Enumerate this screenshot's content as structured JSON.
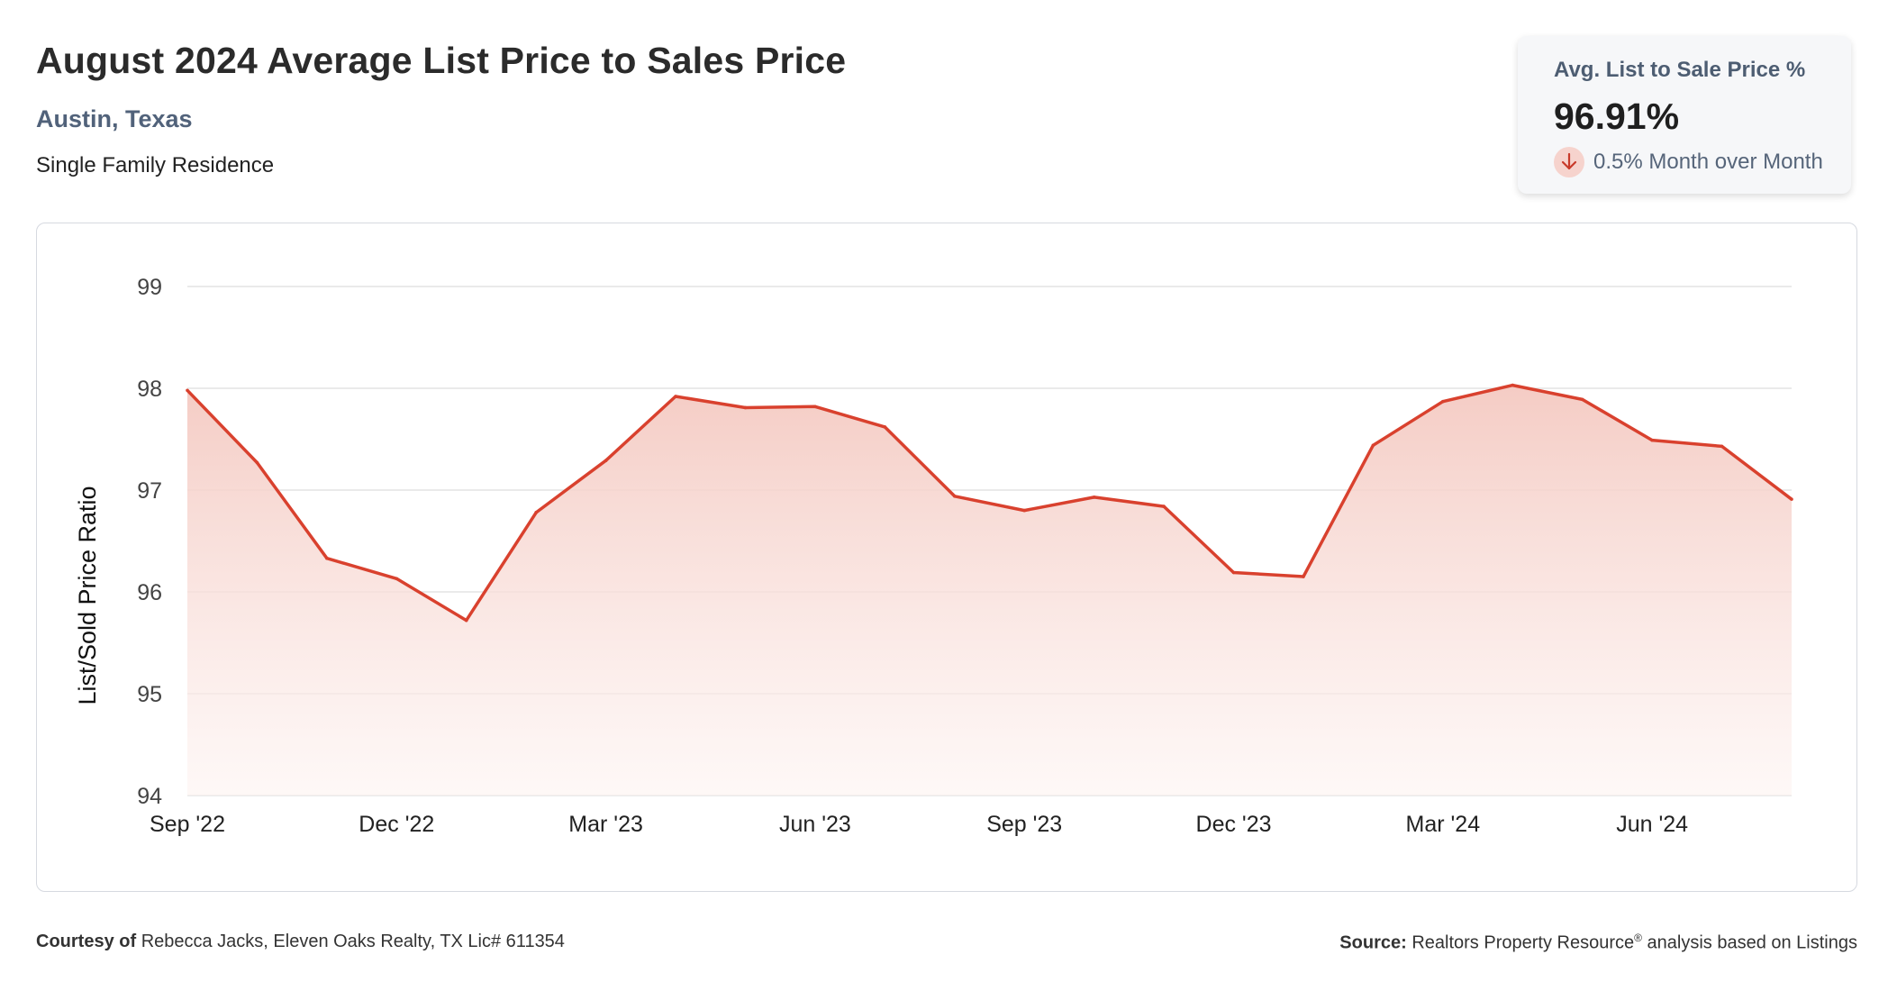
{
  "header": {
    "title": "August 2024 Average List Price to Sales Price",
    "subtitle": "Austin, Texas",
    "property_type": "Single Family Residence"
  },
  "kpi": {
    "label": "Avg. List to Sale Price %",
    "value": "96.91%",
    "change_text": "0.5% Month over Month",
    "direction": "down",
    "arrow_icon": "arrow-down-icon"
  },
  "footer": {
    "courtesy_label": "Courtesy of",
    "courtesy_text": "Rebecca Jacks, Eleven Oaks Realty, TX Lic# 611354",
    "source_label": "Source:",
    "source_text": "Realtors Property Resource",
    "source_mark": "®",
    "source_suffix": "analysis based on Listings"
  },
  "colors": {
    "line": "#d9412e",
    "area_top": "#f4c9c1",
    "grid": "#e3e3e3",
    "title": "#2b2b2b",
    "subtitle": "#51627a"
  },
  "chart_data": {
    "type": "area",
    "title": "",
    "ylabel": "List/Sold Price Ratio",
    "xlabel": "",
    "ylim": [
      94,
      99
    ],
    "yticks": [
      94,
      95,
      96,
      97,
      98,
      99
    ],
    "grid": true,
    "x": [
      "Sep '22",
      "Oct '22",
      "Nov '22",
      "Dec '22",
      "Jan '23",
      "Feb '23",
      "Mar '23",
      "Apr '23",
      "May '23",
      "Jun '23",
      "Jul '23",
      "Aug '23",
      "Sep '23",
      "Oct '23",
      "Nov '23",
      "Dec '23",
      "Jan '24",
      "Feb '24",
      "Mar '24",
      "Apr '24",
      "May '24",
      "Jun '24",
      "Jul '24",
      "Aug '24"
    ],
    "xtick_labels": [
      "Sep '22",
      "Dec '22",
      "Mar '23",
      "Jun '23",
      "Sep '23",
      "Dec '23",
      "Mar '24",
      "Jun '24"
    ],
    "series": [
      {
        "values": [
          97.98,
          97.27,
          96.33,
          96.13,
          95.72,
          96.78,
          97.29,
          97.92,
          97.81,
          97.82,
          97.62,
          96.94,
          96.8,
          96.93,
          96.84,
          96.19,
          96.15,
          97.44,
          97.87,
          98.03,
          97.89,
          97.49,
          97.43,
          96.91
        ]
      }
    ]
  }
}
